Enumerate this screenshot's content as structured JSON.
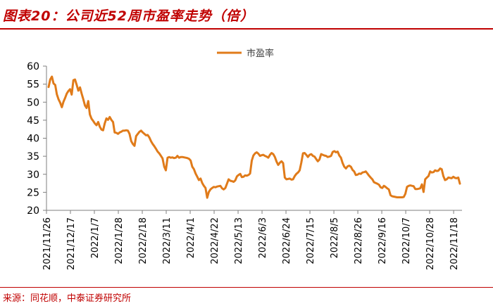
{
  "header": {
    "title": "图表20：公司近52周市盈率走势（倍）"
  },
  "footer": {
    "source": "来源：同花顺，中泰证券研究所"
  },
  "colors": {
    "accent": "#c00000",
    "series": "#e07b1a",
    "axis": "#7f7f7f"
  },
  "chart_data": {
    "type": "line",
    "title": "",
    "xlabel": "",
    "ylabel": "",
    "ylim": [
      20,
      60
    ],
    "yticks": [
      20,
      25,
      30,
      35,
      40,
      45,
      50,
      55,
      60
    ],
    "grid": false,
    "legend": "top-center",
    "xticks": [
      "2021/11/26",
      "2021/12/17",
      "2022/1/7",
      "2022/1/28",
      "2022/2/18",
      "2022/3/11",
      "2022/4/1",
      "2022/4/22",
      "2022/5/13",
      "2022/6/3",
      "2022/6/24",
      "2022/7/15",
      "2022/8/5",
      "2022/8/26",
      "2022/9/16",
      "2022/10/7",
      "2022/10/28",
      "2022/11/18"
    ],
    "series": [
      {
        "name": "市盈率",
        "values": [
          54.2,
          56.3,
          57.1,
          55.2,
          54.8,
          52.2,
          50.8,
          49.9,
          48.6,
          50.1,
          51.2,
          52.4,
          53.1,
          53.6,
          52.1,
          56.1,
          56.3,
          54.8,
          53.2,
          54.1,
          52.4,
          50.8,
          49.1,
          48.4,
          50.3,
          46.6,
          45.4,
          44.8,
          44.1,
          43.6,
          44.5,
          43.2,
          42.4,
          42.2,
          44.1,
          45.5,
          45.1,
          45.9,
          45.1,
          44.5,
          41.6,
          41.5,
          41.2,
          41.6,
          41.8,
          42.1,
          42.1,
          42.2,
          42.1,
          41.2,
          39.2,
          38.4,
          37.9,
          40.6,
          41.2,
          41.8,
          42.1,
          41.6,
          41.2,
          40.8,
          40.9,
          40.2,
          39.2,
          38.4,
          37.8,
          37.1,
          36.3,
          35.8,
          35.1,
          34.4,
          32.1,
          31.1,
          34.6,
          34.8,
          34.6,
          34.7,
          34.5,
          34.6,
          35.1,
          34.6,
          34.8,
          34.8,
          34.7,
          34.6,
          34.5,
          34.3,
          33.8,
          32.1,
          31.4,
          30.2,
          29.3,
          28.4,
          28.8,
          27.6,
          26.8,
          26.2,
          23.5,
          25.1,
          25.8,
          26.2,
          26.5,
          26.4,
          26.6,
          26.7,
          26.8,
          26.1,
          25.8,
          26.2,
          27.4,
          28.6,
          28.2,
          28.1,
          27.9,
          28.3,
          29.4,
          29.8,
          30.1,
          29.2,
          29.3,
          29.7,
          29.6,
          29.8,
          30.2,
          33.8,
          35.2,
          35.8,
          36.1,
          35.7,
          35.1,
          35.3,
          35.4,
          35.1,
          34.9,
          34.6,
          35.4,
          35.9,
          35.6,
          34.8,
          33.5,
          32.6,
          33.2,
          33.6,
          33.1,
          29.1,
          28.6,
          28.7,
          28.8,
          28.5,
          28.6,
          29.5,
          30.1,
          30.5,
          31.1,
          33.2,
          35.8,
          35.9,
          35.4,
          34.8,
          35.4,
          35.6,
          35.1,
          34.9,
          34.2,
          33.6,
          34.1,
          35.6,
          35.4,
          35.2,
          35.1,
          34.8,
          34.9,
          35.1,
          36.2,
          36.4,
          36.1,
          36.3,
          35.2,
          34.6,
          33.1,
          32.1,
          31.6,
          32.2,
          32.4,
          32.1,
          31.2,
          30.8,
          29.8,
          29.9,
          30.2,
          30.1,
          30.5,
          30.6,
          30.8,
          30.2,
          29.6,
          29.1,
          28.6,
          27.8,
          27.6,
          27.4,
          27.1,
          26.4,
          26.2,
          26.8,
          26.5,
          26.1,
          25.8,
          24.2,
          23.9,
          23.8,
          23.7,
          23.6,
          23.6,
          23.6,
          23.6,
          23.7,
          24.6,
          26.5,
          26.8,
          26.9,
          26.8,
          26.7,
          25.9,
          25.9,
          26.0,
          26.1,
          27.2,
          25.1,
          28.6,
          29.1,
          29.5,
          30.8,
          30.5,
          30.6,
          31.1,
          30.9,
          31.0,
          31.6,
          31.4,
          29.5,
          28.4,
          28.6,
          29.1,
          29.0,
          28.9,
          29.3,
          29.0,
          28.9,
          29.1,
          27.4
        ]
      }
    ]
  }
}
